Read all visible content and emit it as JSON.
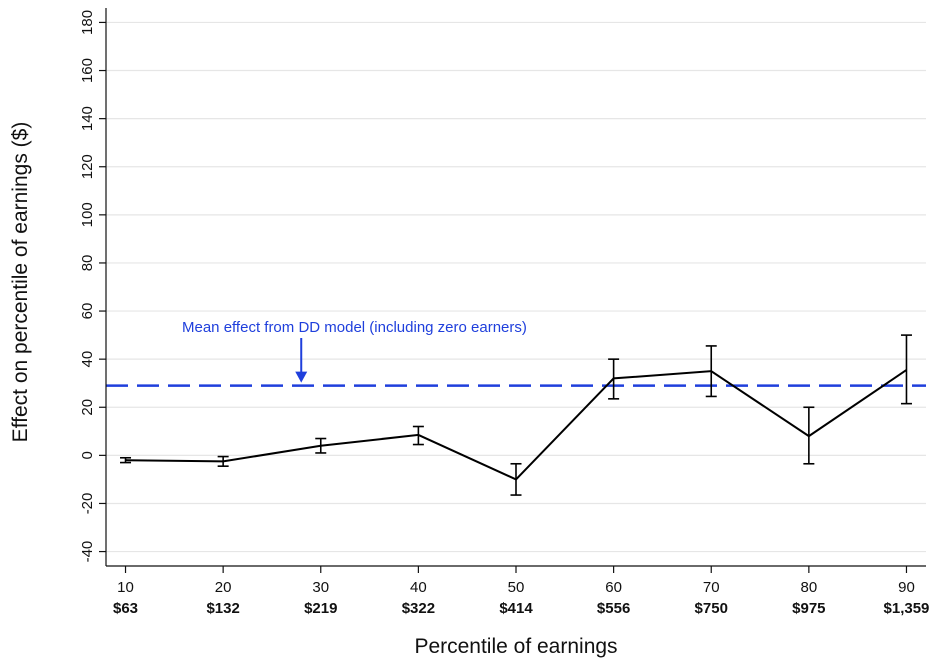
{
  "chart_data": {
    "type": "line",
    "xlabel": "Percentile of earnings",
    "ylabel": "Effect on percentile of earnings ($)",
    "x": [
      10,
      20,
      30,
      40,
      50,
      60,
      70,
      80,
      90
    ],
    "x_sub_labels": [
      "$63",
      "$132",
      "$219",
      "$322",
      "$414",
      "$556",
      "$750",
      "$975",
      "$1,359"
    ],
    "xlim": [
      8,
      92
    ],
    "ylim": [
      -46,
      186
    ],
    "y_ticks": [
      -40,
      -20,
      0,
      20,
      40,
      60,
      80,
      100,
      120,
      140,
      160,
      180
    ],
    "grid": true,
    "series": [
      {
        "values": [
          -2,
          -2.5,
          4,
          8.5,
          -10,
          32,
          35,
          8,
          35.5
        ],
        "ci_low": [
          -3,
          -4.5,
          1,
          4.5,
          -16.5,
          23.5,
          24.5,
          -3.5,
          21.5
        ],
        "ci_high": [
          -1,
          -0.5,
          7,
          12,
          -3.5,
          40,
          45.5,
          20,
          50
        ],
        "color": "#000000"
      }
    ],
    "reference_line": {
      "y": 29,
      "color": "#1f3fdc",
      "style": "dashed"
    },
    "annotation": {
      "text": "Mean effect from DD model (including zero earners)",
      "color": "#1f3fdc",
      "arrow_x": 28
    }
  }
}
